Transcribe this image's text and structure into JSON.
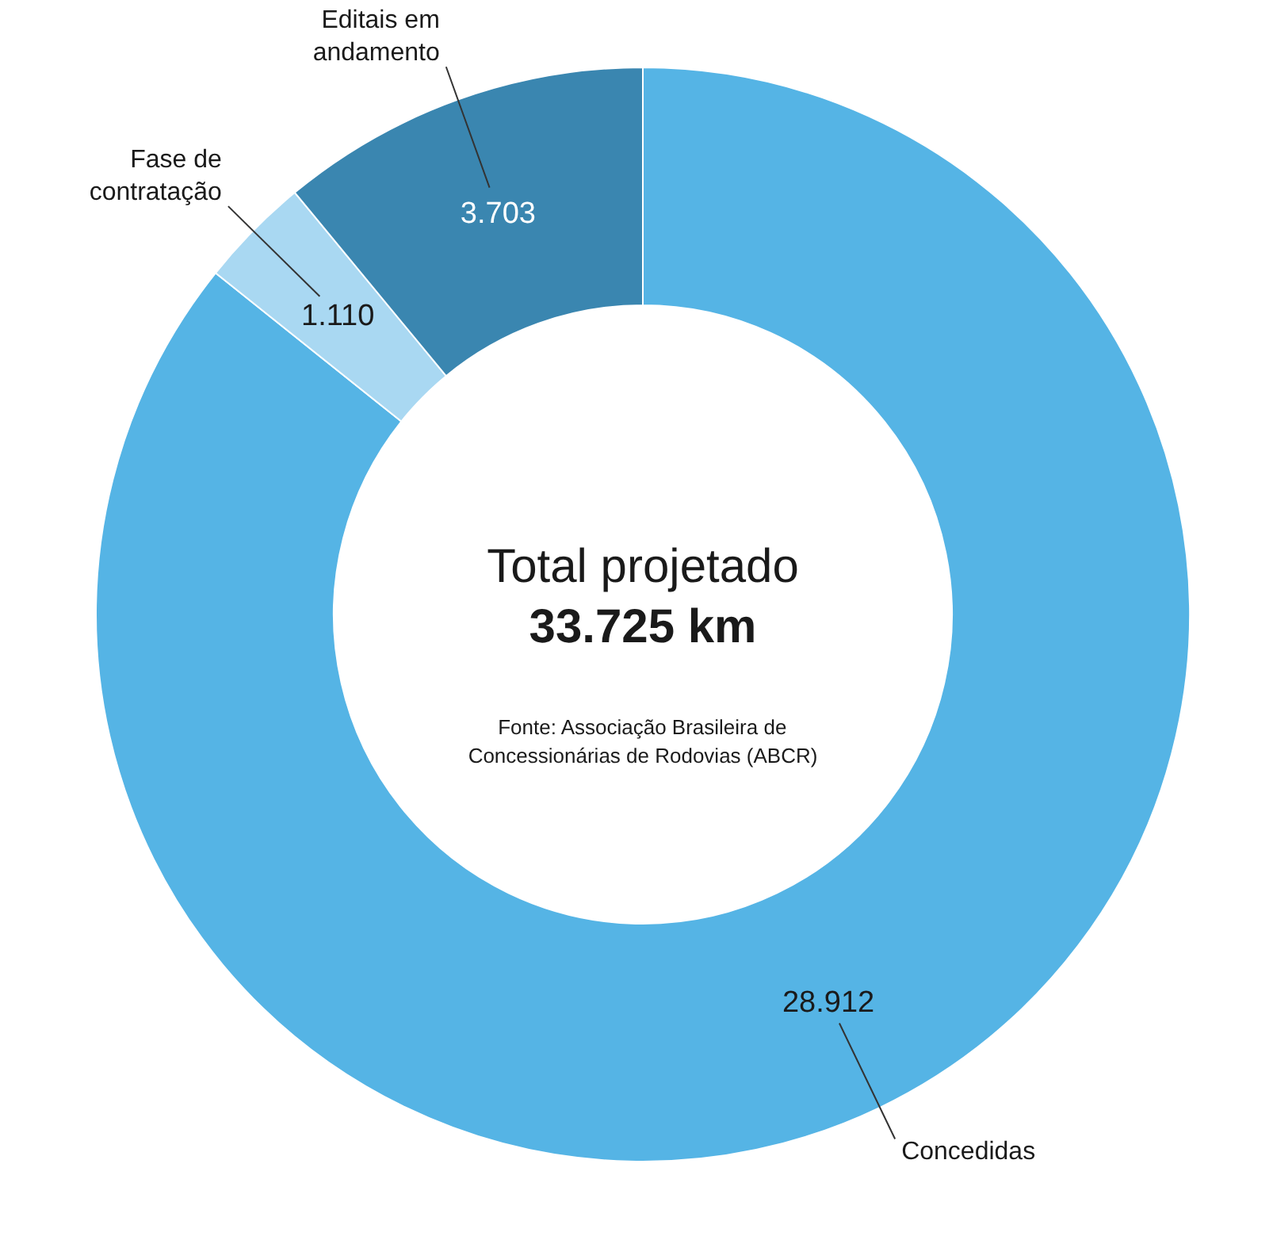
{
  "chart_data": {
    "type": "donut",
    "title": "Total projetado",
    "subtitle": "33.725 km",
    "categories": [
      "Concedidas",
      "Fase de contratação",
      "Editais em andamento"
    ],
    "values": [
      28912,
      1110,
      3703
    ],
    "value_labels": [
      "28.912",
      "1.110",
      "3.703"
    ],
    "colors": [
      "#55b4e5",
      "#a9d8f2",
      "#3a86b0"
    ],
    "annotations": [
      "Fonte: Associação Brasileira de Concessionárias de Rodovias (ABCR)"
    ]
  }
}
